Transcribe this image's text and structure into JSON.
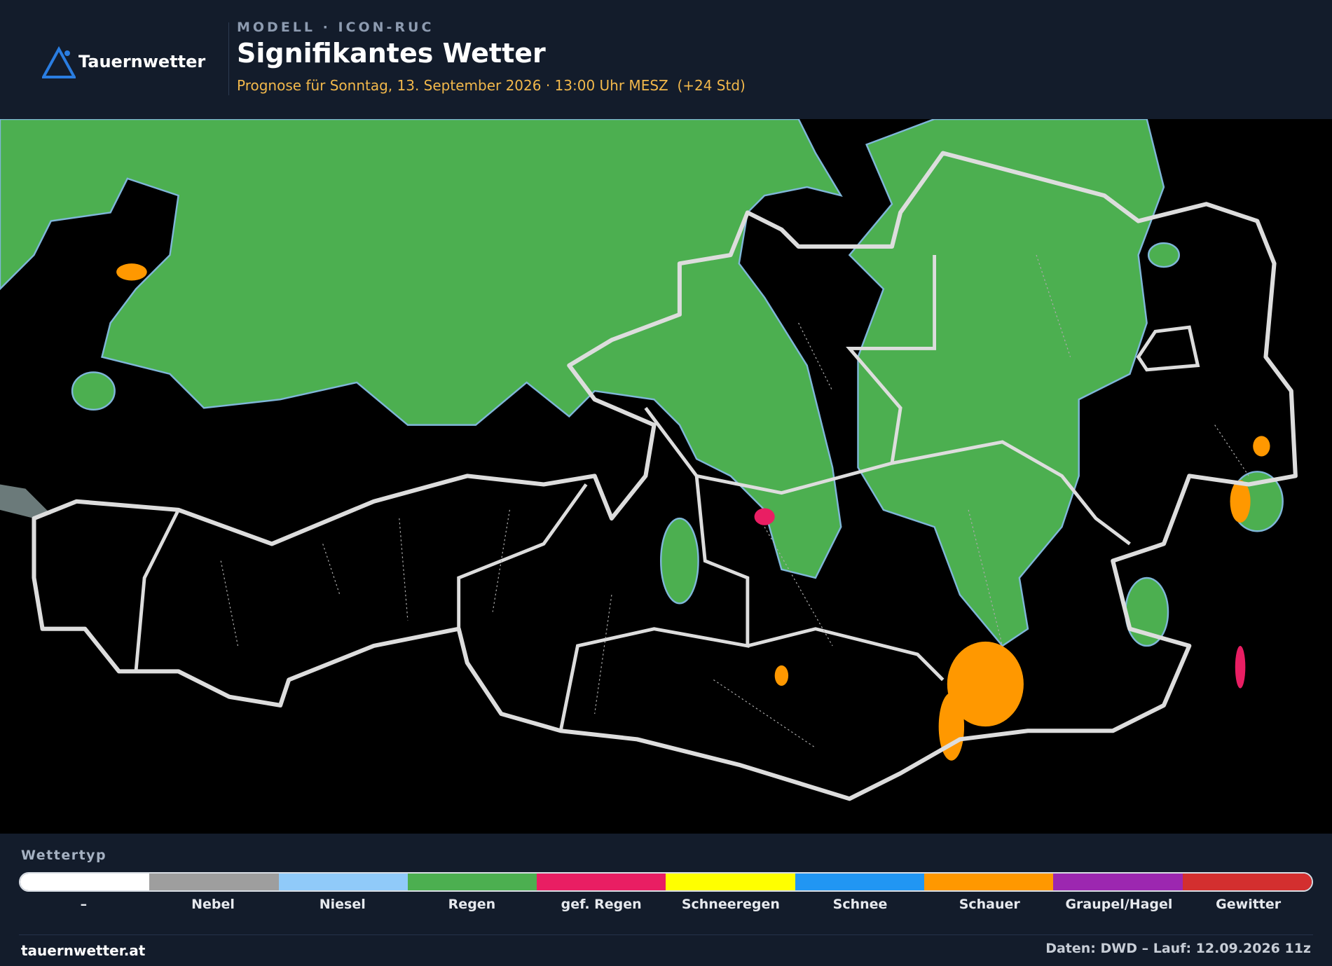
{
  "header": {
    "brand": "Tauernwetter",
    "model": "MODELL · ICON-RUC",
    "title": "Signifikantes Wetter",
    "subtitle": "Prognose für Sonntag, 13. September 2026 · 13:00 Uhr MESZ  (+24 Std)"
  },
  "legend": {
    "title": "Wettertyp",
    "items": [
      {
        "label": "–",
        "color": "#ffffff"
      },
      {
        "label": "Nebel",
        "color": "#9e9e9e"
      },
      {
        "label": "Niesel",
        "color": "#90caf9"
      },
      {
        "label": "Regen",
        "color": "#4caf50"
      },
      {
        "label": "gef. Regen",
        "color": "#e91e63"
      },
      {
        "label": "Schneeregen",
        "color": "#ffff00"
      },
      {
        "label": "Schnee",
        "color": "#2196f3"
      },
      {
        "label": "Schauer",
        "color": "#ff9800"
      },
      {
        "label": "Graupel/Hagel",
        "color": "#9c27b0"
      },
      {
        "label": "Gewitter",
        "color": "#d32f2f"
      }
    ]
  },
  "footer": {
    "site": "tauernwetter.at",
    "source": "Daten: DWD – Lauf: 12.09.2026 11z"
  }
}
